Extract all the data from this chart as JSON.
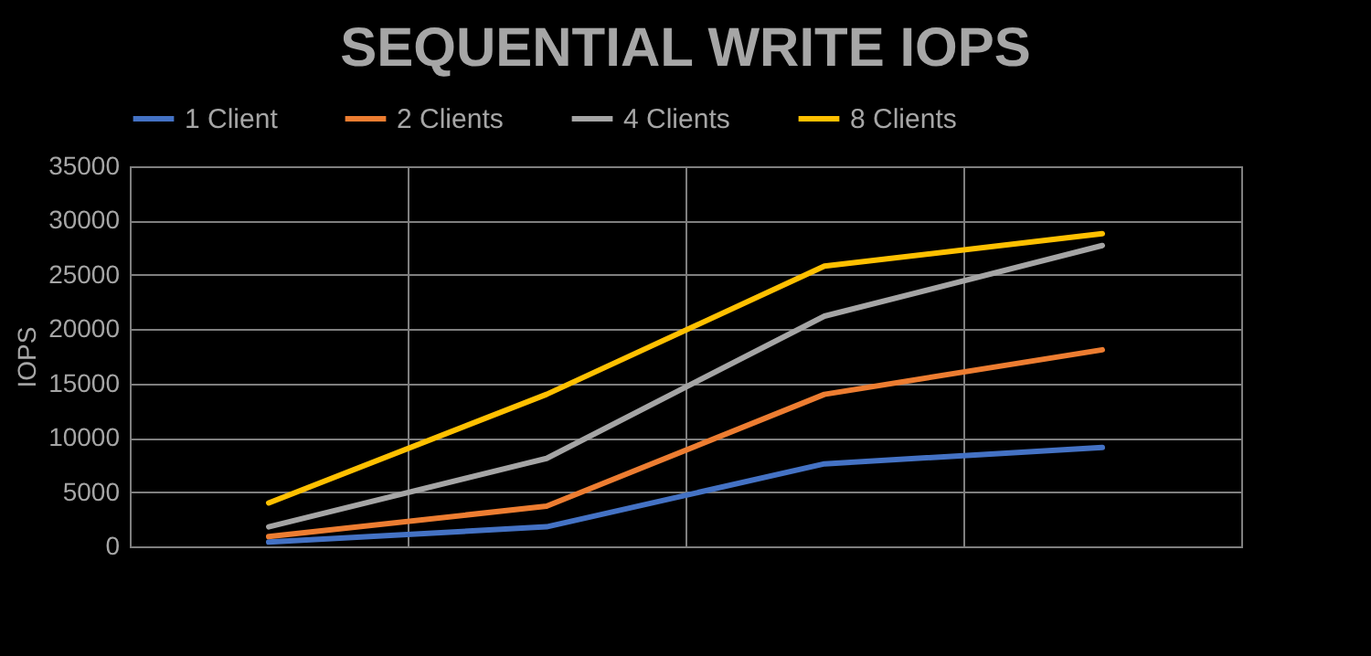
{
  "chart_data": {
    "type": "line",
    "title": "SEQUENTIAL WRITE IOPS",
    "ylabel": "IOPS",
    "categories": [
      null,
      null,
      null,
      null
    ],
    "series": [
      {
        "name": "1 Client",
        "color": "#4472c4",
        "values": [
          400,
          1800,
          7600,
          9100
        ]
      },
      {
        "name": "2 Clients",
        "color": "#ed7d31",
        "values": [
          900,
          3700,
          14000,
          18100
        ]
      },
      {
        "name": "4 Clients",
        "color": "#a5a5a5",
        "values": [
          1800,
          8100,
          21200,
          27700
        ]
      },
      {
        "name": "8 Clients",
        "color": "#ffc000",
        "values": [
          4000,
          14000,
          25800,
          28800
        ]
      }
    ],
    "ylim": [
      0,
      35000
    ],
    "yticks": [
      0,
      5000,
      10000,
      15000,
      20000,
      25000,
      30000,
      35000
    ],
    "grid": true,
    "legend": "top",
    "tick_labels": "y",
    "marker": "none",
    "line_style": "solid"
  }
}
